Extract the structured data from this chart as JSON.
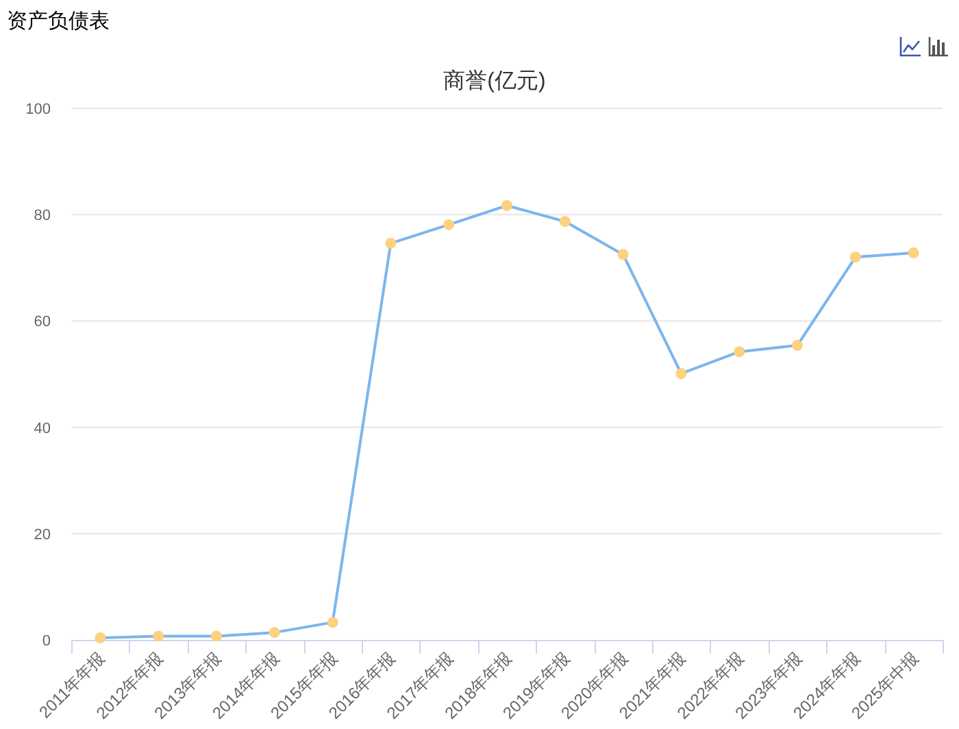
{
  "chart_data": {
    "type": "line",
    "title": "商誉(亿元)",
    "annotations": [
      "资产负债表"
    ],
    "categories": [
      "2011年年报",
      "2012年年报",
      "2013年年报",
      "2014年年报",
      "2015年年报",
      "2016年年报",
      "2017年年报",
      "2018年年报",
      "2019年年报",
      "2020年年报",
      "2021年年报",
      "2022年年报",
      "2023年年报",
      "2024年年报",
      "2025年中报"
    ],
    "series": [
      {
        "color": "#7cb5ec",
        "colors": [
          "#fdd17e",
          "#fdd17e",
          "#fdd17e",
          "#fdd17e",
          "#fdd17e",
          "#fdd17e",
          "#fdd17e",
          "#fdd17e",
          "#fdd17e",
          "#fdd17e",
          "#fdd17e",
          "#fdd17e",
          "#fdd17e",
          "#fdd17e",
          "#fdd17e"
        ],
        "values": [
          0.4,
          0.7,
          0.7,
          1.4,
          3.3,
          74.6,
          78.1,
          81.7,
          78.7,
          72.5,
          50.1,
          54.2,
          55.4,
          72.0,
          72.8
        ]
      }
    ],
    "ylim": [
      0,
      100
    ],
    "yticks": [
      0,
      20,
      40,
      60,
      80,
      100
    ],
    "grid": "y",
    "marker": "circle",
    "line_style": "solid"
  }
}
